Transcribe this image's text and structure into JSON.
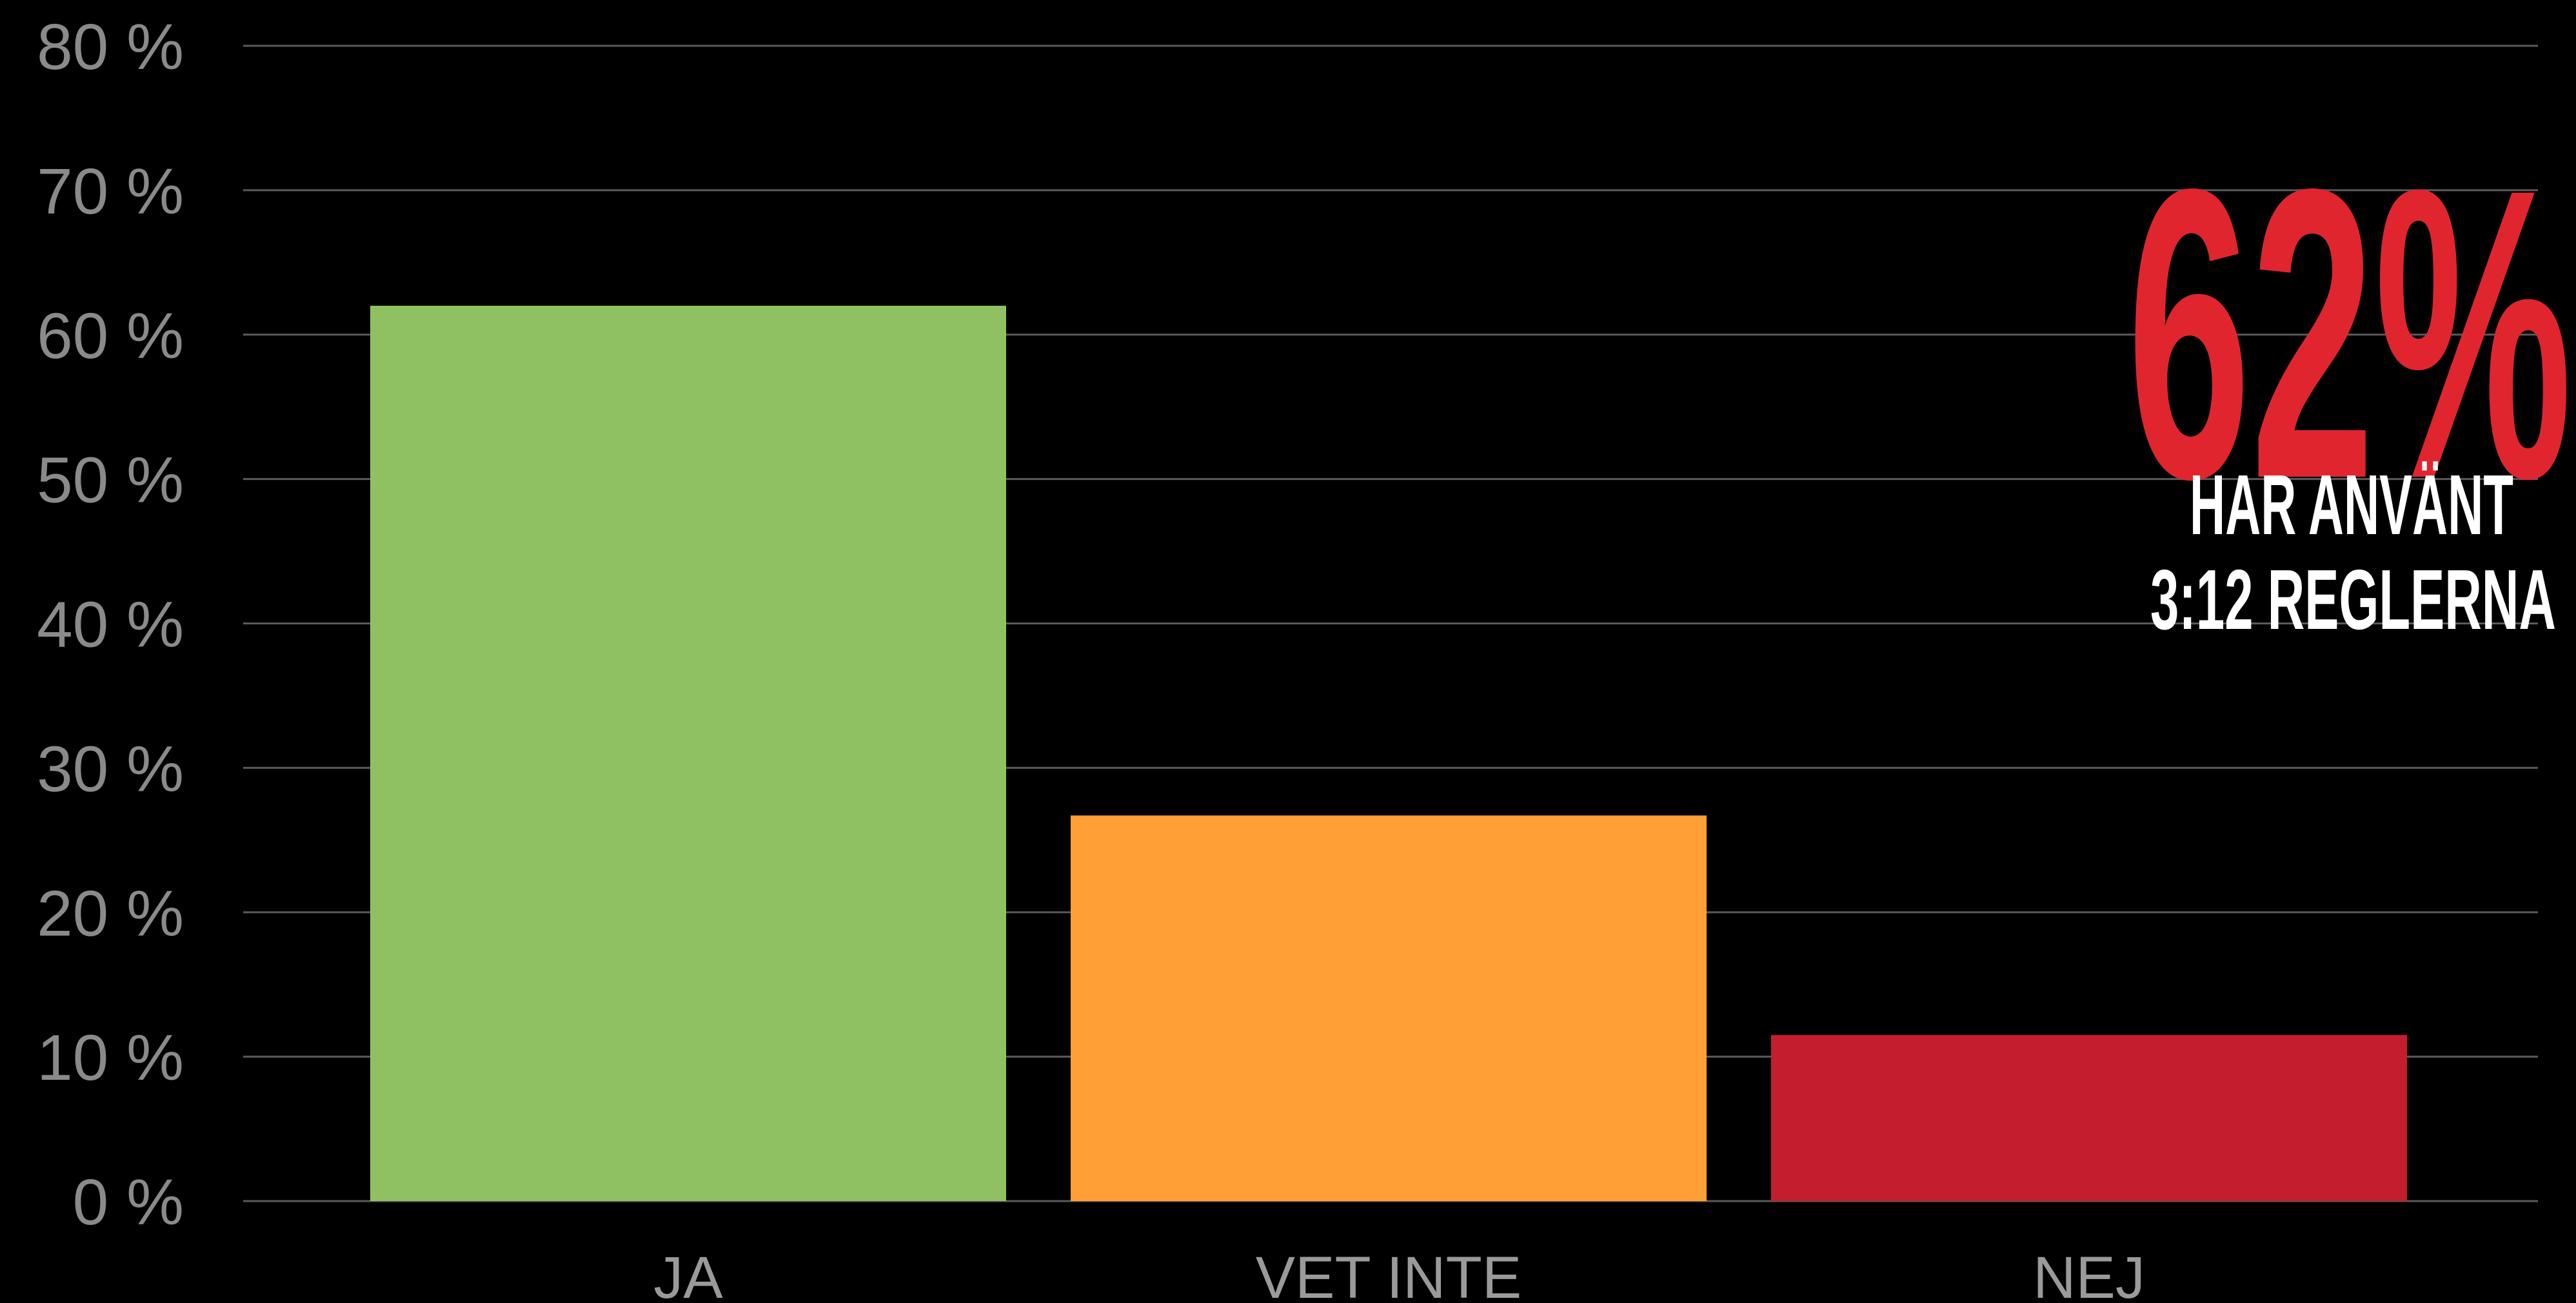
{
  "chart_data": {
    "type": "bar",
    "categories": [
      "JA",
      "VET INTE",
      "NEJ"
    ],
    "values": [
      62,
      26.7,
      11.5
    ],
    "colors": [
      "#8fc062",
      "#ff9f36",
      "#c41e2e"
    ],
    "ylim": [
      0,
      80
    ],
    "yticks": [
      {
        "value": 0,
        "label": "0 %"
      },
      {
        "value": 10,
        "label": "10 %"
      },
      {
        "value": 20,
        "label": "20 %"
      },
      {
        "value": 30,
        "label": "30 %"
      },
      {
        "value": 40,
        "label": "40 %"
      },
      {
        "value": 50,
        "label": "50 %"
      },
      {
        "value": 60,
        "label": "60 %"
      },
      {
        "value": 70,
        "label": "70 %"
      },
      {
        "value": 80,
        "label": "80 %"
      }
    ],
    "grid": true,
    "annotations": [
      "62%",
      "HAR ANVÄNT",
      "3:12 REGLERNA"
    ]
  }
}
